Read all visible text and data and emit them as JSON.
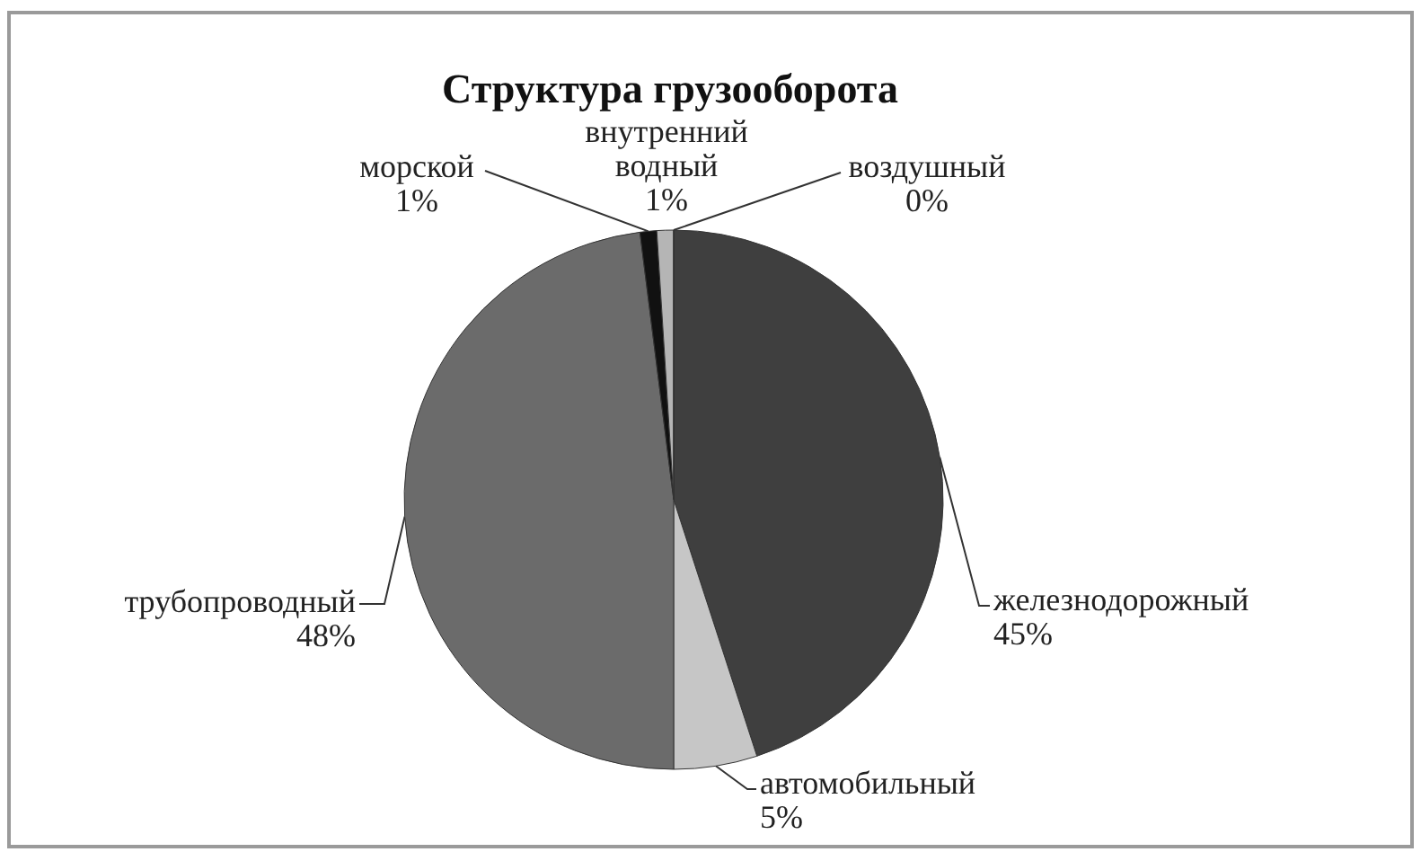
{
  "chart_data": {
    "type": "pie",
    "title": "Структура грузооборота",
    "categories": [
      "железнодорожный",
      "автомобильный",
      "трубопроводный",
      "морской",
      "внутренний водный",
      "воздушный"
    ],
    "values": [
      45,
      5,
      48,
      1,
      1,
      0
    ],
    "value_labels": [
      "45%",
      "5%",
      "48%",
      "1%",
      "1%",
      "0%"
    ],
    "colors": [
      "#3f3f3f",
      "#c6c6c6",
      "#6b6b6b",
      "#111111",
      "#b5b5b5",
      "#909090"
    ]
  }
}
